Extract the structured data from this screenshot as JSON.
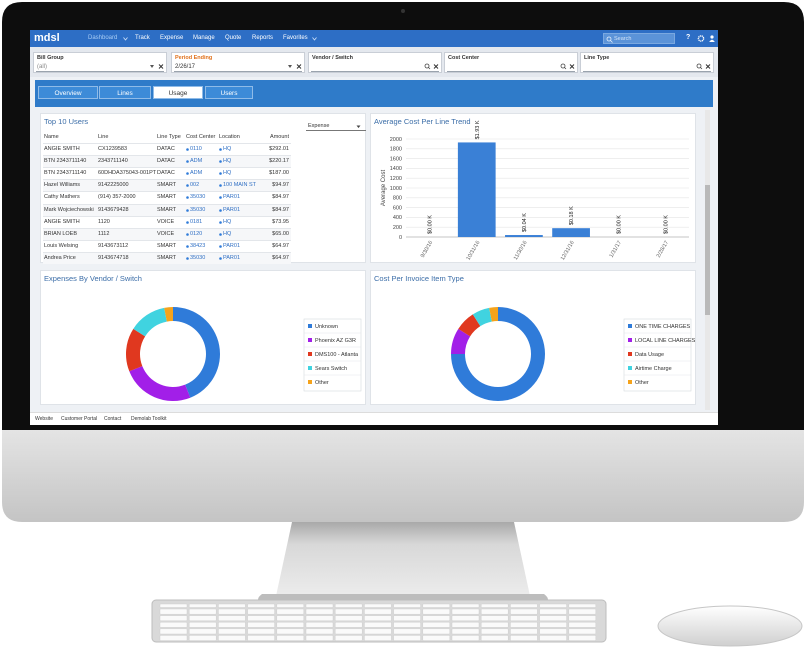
{
  "nav": {
    "logo": "mdsl",
    "menu": [
      "Dashboard",
      "Track",
      "Expense",
      "Manage",
      "Quote",
      "Reports",
      "Favorites"
    ],
    "search_placeholder": "Search",
    "help_icon": "?"
  },
  "filters": [
    {
      "label": "Bill Group",
      "value": "(all)"
    },
    {
      "label": "Period Ending",
      "value": "2/26/17"
    },
    {
      "label": "Vendor / Switch"
    },
    {
      "label": "Cost Center"
    },
    {
      "label": "Line Type"
    }
  ],
  "tabs": {
    "items": [
      "Overview",
      "Lines",
      "Usage",
      "Users"
    ],
    "active": 2
  },
  "top_users": {
    "title": "Top 10 Users",
    "sort_by": "Expense",
    "columns": [
      "Name",
      "Line",
      "Line Type",
      "Cost Center",
      "Location",
      "Amount"
    ],
    "rows": [
      [
        "ANGIE SMITH",
        "CX1239583",
        "DATAC",
        "0110",
        "HQ",
        "$292.01"
      ],
      [
        "BTN 2343711140",
        "2343711140",
        "DATAC",
        "ADM",
        "HQ",
        "$220.17"
      ],
      [
        "BTN 2343711140",
        "60DHDA375043-001PT",
        "DATAC",
        "ADM",
        "HQ",
        "$187.00"
      ],
      [
        "Hazel Williams",
        "9142225000",
        "SMART",
        "002",
        "100 MAIN ST",
        "$94.97"
      ],
      [
        "Cathy Mathers",
        "(914) 357-2000",
        "SMART",
        "35030",
        "PAR01",
        "$84.97"
      ],
      [
        "Mark Wojciechowski",
        "9143679428",
        "SMART",
        "35030",
        "PAR01",
        "$84.97"
      ],
      [
        "ANGIE SMITH",
        "1120",
        "VOICE",
        "0181",
        "HQ",
        "$73.95"
      ],
      [
        "BRIAN LOEB",
        "1112",
        "VOICE",
        "0120",
        "HQ",
        "$65.00"
      ],
      [
        "Louis Welsing",
        "9143673112",
        "SMART",
        "38423",
        "PAR01",
        "$64.97"
      ],
      [
        "Andrea Price",
        "9143674718",
        "SMART",
        "35030",
        "PAR01",
        "$64.97"
      ]
    ]
  },
  "chart_data": [
    {
      "type": "bar",
      "title": "Average Cost Per Line Trend",
      "y_label": "Average Cost",
      "categories": [
        "9/30/16",
        "10/31/16",
        "11/30/16",
        "12/31/16",
        "1/31/17",
        "2/28/17"
      ],
      "values": [
        0,
        1930,
        40,
        180,
        0,
        0
      ],
      "value_labels": [
        "$0.00 K",
        "$1.93 K",
        "$0.04 K",
        "$0.18 K",
        "$0.00 K",
        "$0.00 K"
      ],
      "color": "#3a80d6",
      "ylim": [
        0,
        2000
      ],
      "yticks": [
        0,
        200,
        400,
        600,
        800,
        1000,
        1200,
        1400,
        1600,
        1800,
        2000
      ],
      "grid": true
    },
    {
      "type": "donut",
      "title": "Expenses By Vendor / Switch",
      "labels": [
        "Unknown",
        "Phoenix AZ G3R",
        "DMS100 - Atlanta",
        "Sears Switch",
        "Other"
      ],
      "values": [
        44,
        25,
        15,
        13,
        3
      ],
      "colors": [
        "#2f7bd9",
        "#a21fe8",
        "#e0381f",
        "#40d3e0",
        "#f5a31b"
      ],
      "legend": "right"
    },
    {
      "type": "donut",
      "title": "Cost Per Invoice Item Type",
      "labels": [
        "ONE TIME CHARGES",
        "LOCAL LINE CHARGES",
        "Data Usage",
        "Airtime Charge",
        "Other"
      ],
      "values": [
        75,
        9,
        7,
        6,
        3
      ],
      "colors": [
        "#2f7bd9",
        "#a21fe8",
        "#e0381f",
        "#40d3e0",
        "#f5a31b"
      ],
      "legend": "right"
    }
  ],
  "footer": {
    "links": [
      "Website",
      "Customer Portal",
      "Contact",
      "Demolab Toolkit"
    ]
  }
}
